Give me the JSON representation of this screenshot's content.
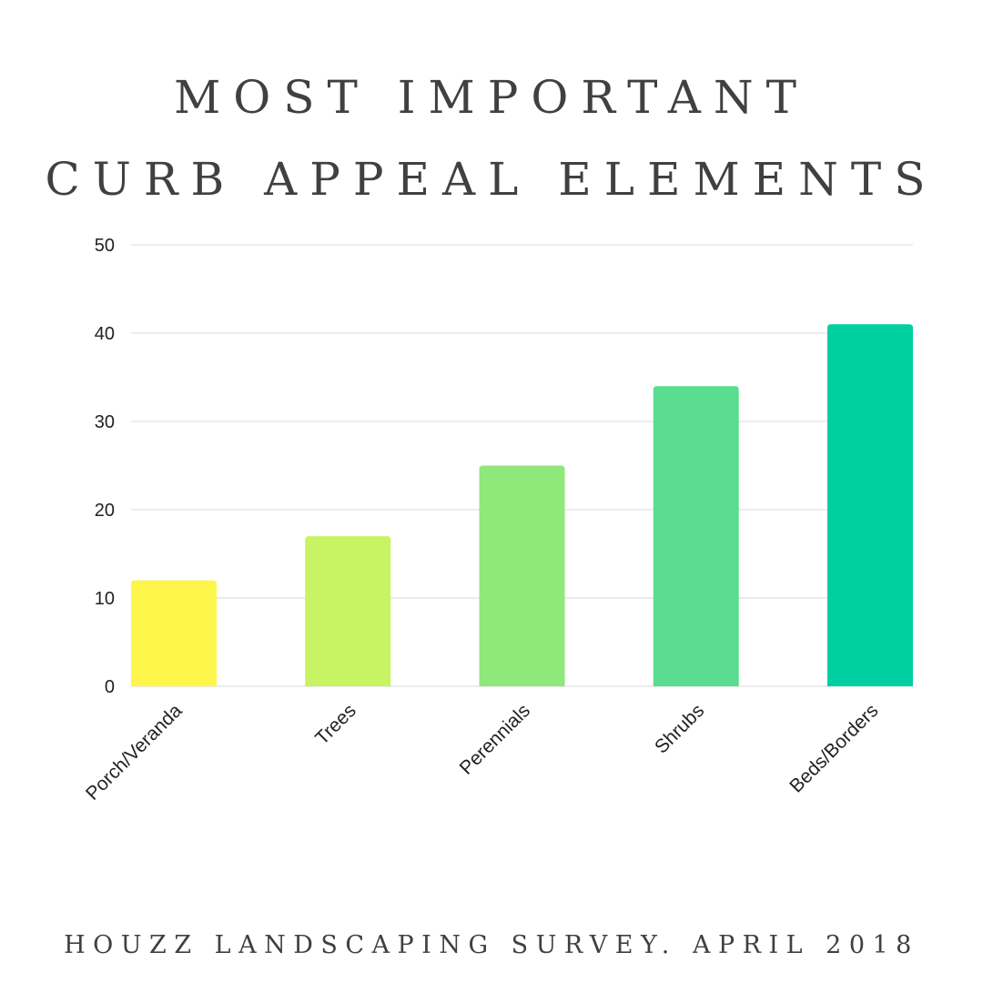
{
  "title_lines": [
    "MOST IMPORTANT",
    "CURB APPEAL ELEMENTS"
  ],
  "source": "HOUZZ LANDSCAPING SURVEY. APRIL 2018",
  "chart_data": {
    "type": "bar",
    "title": "MOST IMPORTANT CURB APPEAL ELEMENTS",
    "categories": [
      "Porch/Veranda",
      "Trees",
      "Perennials",
      "Shrubs",
      "Beds/Borders"
    ],
    "values": [
      12,
      17,
      25,
      34,
      41
    ],
    "colors": [
      "#fef54a",
      "#c8f363",
      "#8ee87a",
      "#5bdd8f",
      "#00cfa1"
    ],
    "xlabel": "",
    "ylabel": "",
    "ylim": [
      0,
      50
    ],
    "yticks": [
      0,
      10,
      20,
      30,
      40,
      50
    ],
    "grid": true,
    "gridline_color": "#d9d9d9",
    "legend": "none"
  }
}
